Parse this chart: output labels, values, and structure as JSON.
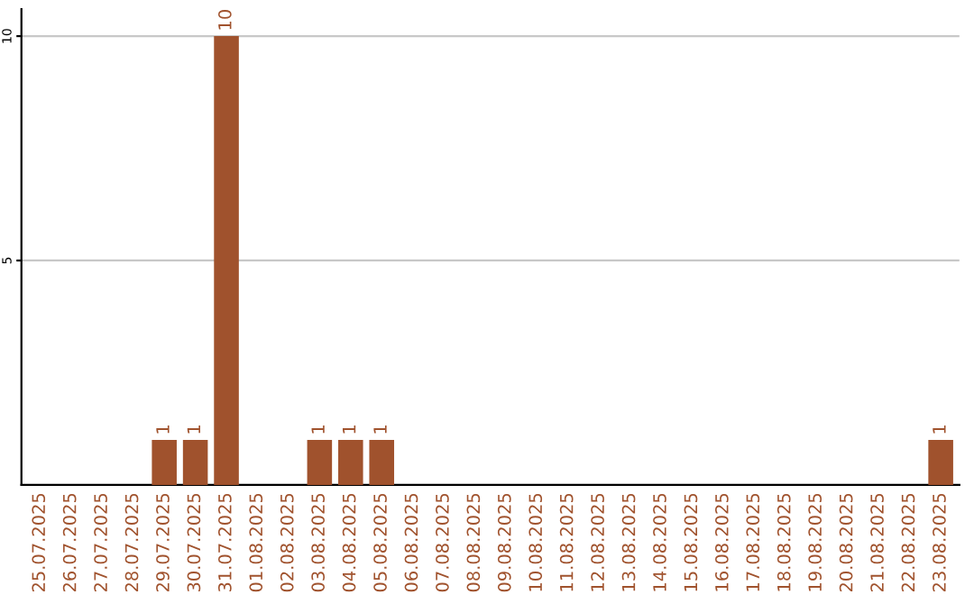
{
  "chart_data": {
    "type": "bar",
    "categories": [
      "25.07.2025",
      "26.07.2025",
      "27.07.2025",
      "28.07.2025",
      "29.07.2025",
      "30.07.2025",
      "31.07.2025",
      "01.08.2025",
      "02.08.2025",
      "03.08.2025",
      "04.08.2025",
      "05.08.2025",
      "06.08.2025",
      "07.08.2025",
      "08.08.2025",
      "09.08.2025",
      "10.08.2025",
      "11.08.2025",
      "12.08.2025",
      "13.08.2025",
      "14.08.2025",
      "15.08.2025",
      "16.08.2025",
      "17.08.2025",
      "18.08.2025",
      "19.08.2025",
      "20.08.2025",
      "21.08.2025",
      "22.08.2025",
      "23.08.2025"
    ],
    "values": [
      0,
      0,
      0,
      0,
      1,
      1,
      10,
      0,
      0,
      1,
      1,
      1,
      0,
      0,
      0,
      0,
      0,
      0,
      0,
      0,
      0,
      0,
      0,
      0,
      0,
      0,
      0,
      0,
      0,
      1
    ],
    "value_labels": [
      null,
      null,
      null,
      null,
      "1",
      "1",
      "10",
      null,
      null,
      "1",
      "1",
      "1",
      null,
      null,
      null,
      null,
      null,
      null,
      null,
      null,
      null,
      null,
      null,
      null,
      null,
      null,
      null,
      null,
      null,
      "1"
    ],
    "color": "#a0522d",
    "ylim": [
      0,
      10.6
    ],
    "yticks": [
      5,
      10
    ],
    "grid": "y"
  }
}
